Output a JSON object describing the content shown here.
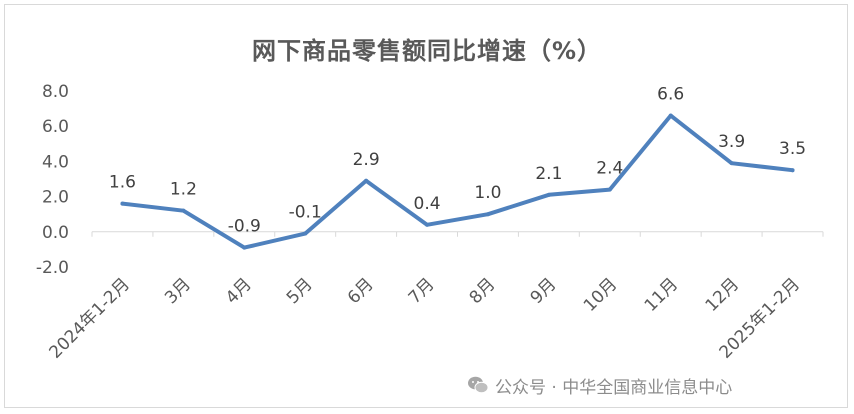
{
  "chart_data": {
    "type": "line",
    "title": "网下商品零售额同比增速（%）",
    "categories": [
      "2024年1-2月",
      "3月",
      "4月",
      "5月",
      "6月",
      "7月",
      "8月",
      "9月",
      "10月",
      "11月",
      "12月",
      "2025年1-2月"
    ],
    "values": [
      1.6,
      1.2,
      -0.9,
      -0.1,
      2.9,
      0.4,
      1.0,
      2.1,
      2.4,
      6.6,
      3.9,
      3.5
    ],
    "data_labels": [
      "1.6",
      "1.2",
      "-0.9",
      "-0.1",
      "2.9",
      "0.4",
      "1.0",
      "2.1",
      "2.4",
      "6.6",
      "3.9",
      "3.5"
    ],
    "y_ticks": [
      "8.0",
      "6.0",
      "4.0",
      "2.0",
      "0.0",
      "-2.0"
    ],
    "ylim": [
      -2.0,
      8.0
    ],
    "xlabel": "",
    "ylabel": "",
    "grid": false,
    "legend": "none",
    "line_color": "#4f81bd"
  },
  "watermark": {
    "text": "公众号 · 中华全国商业信息中心",
    "icon": "wechat-icon"
  }
}
